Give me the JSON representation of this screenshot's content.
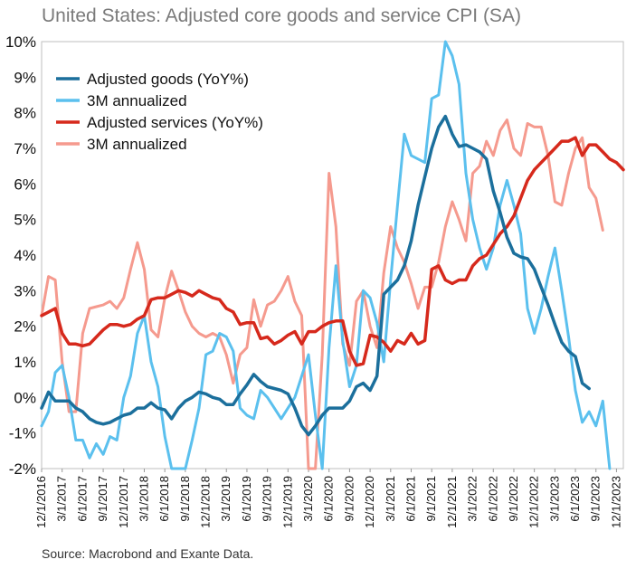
{
  "title": "United States: Adjusted core goods and service CPI (SA)",
  "source": "Source: Macrobond and Exante Data.",
  "chart_data": {
    "type": "line",
    "title": "United States: Adjusted core goods and service CPI (SA)",
    "ylim": [
      -2,
      10
    ],
    "y_tick_labels": [
      "-2%",
      "-1%",
      "0%",
      "1%",
      "2%",
      "3%",
      "4%",
      "5%",
      "6%",
      "7%",
      "8%",
      "9%",
      "10%"
    ],
    "y_tick_values": [
      -2,
      -1,
      0,
      1,
      2,
      3,
      4,
      5,
      6,
      7,
      8,
      9,
      10
    ],
    "x_tick_labels": [
      "12/1/2016",
      "3/1/2017",
      "6/1/2017",
      "9/1/2017",
      "12/1/2017",
      "3/1/2018",
      "6/1/2018",
      "9/1/2018",
      "12/1/2018",
      "3/1/2019",
      "6/1/2019",
      "9/1/2019",
      "12/1/2019",
      "3/1/2020",
      "6/1/2020",
      "9/1/2020",
      "12/1/2020",
      "3/1/2021",
      "6/1/2021",
      "9/1/2021",
      "12/1/2021",
      "3/1/2022",
      "6/1/2022",
      "9/1/2022",
      "12/1/2022",
      "3/1/2023",
      "6/1/2023",
      "9/1/2023",
      "12/1/2023"
    ],
    "x_start": "12/1/2016",
    "x_step_months": 1,
    "legend": [
      "Adjusted goods (YoY%)",
      "3M annualized",
      "Adjusted services (YoY%)",
      "3M annualized"
    ],
    "series": [
      {
        "name": "3M annualized",
        "color": "#f59a8e",
        "values": [
          2.3,
          3.4,
          3.3,
          1.0,
          -0.4,
          -0.4,
          1.8,
          2.5,
          2.55,
          2.6,
          2.7,
          2.5,
          2.8,
          3.6,
          4.35,
          3.6,
          1.9,
          1.7,
          2.8,
          3.55,
          3.0,
          2.4,
          2.0,
          1.8,
          1.7,
          1.8,
          1.7,
          1.2,
          0.4,
          1.2,
          1.4,
          2.75,
          2.0,
          2.6,
          2.7,
          3.0,
          3.4,
          2.7,
          2.3,
          -2.0,
          -2.1,
          1.2,
          6.3,
          4.8,
          1.5,
          0.9,
          2.7,
          3.0,
          2.0,
          1.4,
          3.5,
          4.8,
          4.2,
          3.8,
          3.2,
          2.5,
          3.1,
          3.1,
          3.8,
          4.8,
          5.5,
          5.0,
          4.4,
          6.3,
          6.5,
          7.2,
          6.8,
          7.5,
          7.8,
          7.0,
          6.8,
          7.7,
          7.6,
          7.6,
          6.8,
          5.5,
          5.4,
          6.3,
          7.0,
          7.3,
          5.9,
          5.6,
          4.7
        ]
      },
      {
        "name": "3M annualized",
        "color": "#5bc0ee",
        "values": [
          -0.8,
          -0.4,
          0.7,
          0.9,
          0.0,
          -1.2,
          -1.2,
          -1.7,
          -1.3,
          -1.6,
          -1.1,
          -1.2,
          0.0,
          0.6,
          1.8,
          2.3,
          1.0,
          0.3,
          -1.1,
          -2.0,
          -2.3,
          -2.1,
          -1.2,
          -0.3,
          1.2,
          1.3,
          1.8,
          1.7,
          1.3,
          -0.3,
          -0.5,
          -0.6,
          0.2,
          0.0,
          -0.3,
          -0.6,
          -0.3,
          0.0,
          0.6,
          1.2,
          -0.5,
          -2.1,
          1.4,
          3.7,
          1.6,
          0.3,
          0.9,
          3.0,
          2.8,
          2.1,
          1.0,
          3.3,
          5.4,
          7.4,
          6.8,
          6.7,
          6.6,
          8.4,
          8.5,
          10.0,
          9.6,
          8.8,
          6.3,
          5.0,
          4.2,
          3.6,
          4.2,
          5.4,
          6.1,
          5.4,
          4.6,
          2.5,
          1.8,
          2.5,
          3.4,
          4.2,
          3.0,
          1.7,
          0.2,
          -0.7,
          -0.4,
          -0.8,
          -0.1,
          -2.0
        ]
      },
      {
        "name": "Adjusted services (YoY%)",
        "color": "#d6291c",
        "values": [
          2.3,
          2.4,
          2.5,
          1.8,
          1.5,
          1.5,
          1.45,
          1.5,
          1.7,
          1.9,
          2.05,
          2.05,
          2.0,
          2.05,
          2.2,
          2.3,
          2.75,
          2.8,
          2.8,
          2.9,
          3.0,
          2.95,
          2.85,
          3.0,
          2.9,
          2.8,
          2.75,
          2.5,
          2.4,
          2.05,
          2.1,
          2.1,
          1.65,
          1.7,
          1.5,
          1.6,
          1.75,
          1.85,
          1.5,
          1.85,
          1.85,
          2.0,
          2.1,
          2.15,
          2.15,
          1.3,
          0.9,
          0.95,
          1.75,
          1.7,
          1.55,
          1.3,
          1.6,
          1.5,
          1.8,
          1.5,
          1.6,
          3.6,
          3.7,
          3.3,
          3.2,
          3.3,
          3.3,
          3.7,
          3.9,
          4.0,
          4.3,
          4.6,
          4.8,
          5.1,
          5.6,
          6.1,
          6.4,
          6.6,
          6.8,
          7.0,
          7.2,
          7.2,
          7.3,
          6.8,
          7.1,
          7.1,
          6.9,
          6.7,
          6.6,
          6.4
        ]
      },
      {
        "name": "Adjusted goods (YoY%)",
        "color": "#1b6f9c",
        "values": [
          -0.3,
          0.15,
          -0.1,
          -0.1,
          -0.1,
          -0.3,
          -0.4,
          -0.6,
          -0.7,
          -0.75,
          -0.7,
          -0.6,
          -0.5,
          -0.45,
          -0.3,
          -0.3,
          -0.15,
          -0.3,
          -0.35,
          -0.6,
          -0.3,
          -0.1,
          0.0,
          0.15,
          0.1,
          0.0,
          -0.05,
          -0.2,
          -0.2,
          0.1,
          0.35,
          0.65,
          0.45,
          0.3,
          0.25,
          0.2,
          0.1,
          -0.3,
          -0.8,
          -1.05,
          -0.8,
          -0.5,
          -0.3,
          -0.3,
          -0.3,
          -0.1,
          0.3,
          0.4,
          0.2,
          0.6,
          2.9,
          3.1,
          3.3,
          3.7,
          4.4,
          5.4,
          6.2,
          7.0,
          7.6,
          7.9,
          7.4,
          7.05,
          7.1,
          7.0,
          6.9,
          6.7,
          5.8,
          5.2,
          4.5,
          4.05,
          3.95,
          3.9,
          3.6,
          3.1,
          2.6,
          2.05,
          1.55,
          1.3,
          1.15,
          0.4,
          0.25
        ]
      }
    ]
  }
}
